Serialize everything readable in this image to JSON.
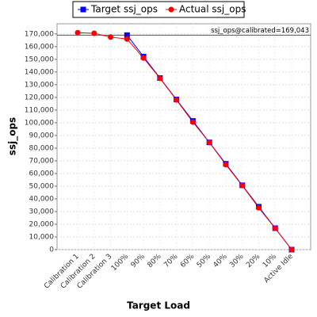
{
  "chart_data": {
    "type": "line",
    "x_label": "Target Load",
    "y_label": "ssj_ops",
    "categories": [
      "Calibration 1",
      "Calibration 2",
      "Calibration 3",
      "100%",
      "90%",
      "80%",
      "70%",
      "60%",
      "50%",
      "40%",
      "30%",
      "20%",
      "10%",
      "Active Idle"
    ],
    "series": [
      {
        "name": "Target ssj_ops",
        "color": "#0000ff",
        "marker": "square",
        "values": [
          null,
          null,
          null,
          169043,
          152139,
          135234,
          118330,
          101426,
          84522,
          67617,
          50713,
          33809,
          16904,
          0
        ]
      },
      {
        "name": "Actual ssj_ops",
        "color": "#ff0000",
        "marker": "circle",
        "values": [
          171000,
          170500,
          167500,
          166000,
          151000,
          135000,
          118000,
          100500,
          84500,
          67000,
          50500,
          33000,
          16800,
          0
        ]
      }
    ],
    "reference_line": {
      "value": 169043,
      "label": "ssj_ops@calibrated=169,043"
    },
    "ylim": [
      0,
      178000
    ],
    "yticks": [
      {
        "value": 0,
        "label": "0"
      },
      {
        "value": 10000,
        "label": "10,000"
      },
      {
        "value": 20000,
        "label": "20,000"
      },
      {
        "value": 30000,
        "label": "30,000"
      },
      {
        "value": 40000,
        "label": "40,000"
      },
      {
        "value": 50000,
        "label": "50,000"
      },
      {
        "value": 60000,
        "label": "60,000"
      },
      {
        "value": 70000,
        "label": "70,000"
      },
      {
        "value": 80000,
        "label": "80,000"
      },
      {
        "value": 90000,
        "label": "90,000"
      },
      {
        "value": 100000,
        "label": "100,000"
      },
      {
        "value": 110000,
        "label": "110,000"
      },
      {
        "value": 120000,
        "label": "120,000"
      },
      {
        "value": 130000,
        "label": "130,000"
      },
      {
        "value": 140000,
        "label": "140,000"
      },
      {
        "value": 150000,
        "label": "150,000"
      },
      {
        "value": 160000,
        "label": "160,000"
      },
      {
        "value": 170000,
        "label": "170,000"
      }
    ],
    "grid": true,
    "legend": "top"
  }
}
